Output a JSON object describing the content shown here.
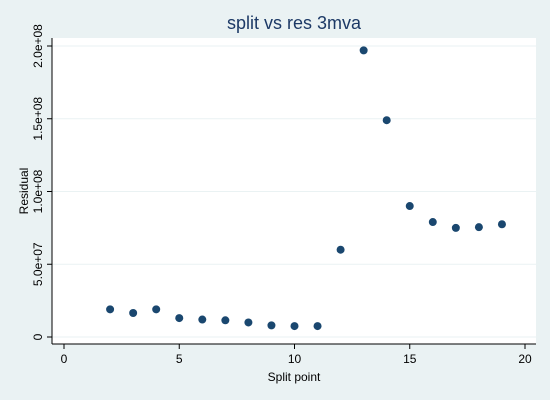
{
  "chart_data": {
    "type": "scatter",
    "title": "split vs res 3mva",
    "xlabel": "Split point",
    "ylabel": "Residual",
    "xlim": [
      0,
      20
    ],
    "ylim": [
      0,
      200000000
    ],
    "xticks": [
      0,
      5,
      10,
      15,
      20
    ],
    "xtick_labels": [
      "0",
      "5",
      "10",
      "15",
      "20"
    ],
    "yticks": [
      0,
      50000000,
      100000000,
      150000000,
      200000000
    ],
    "ytick_labels": [
      "0",
      "5.0e+07",
      "1.0e+08",
      "1.5e+08",
      "2.0e+08"
    ],
    "grid": true,
    "legend": "none",
    "series": [
      {
        "x": [
          2,
          3,
          4,
          5,
          6,
          7,
          8,
          9,
          10,
          11,
          12,
          13,
          14,
          15,
          16,
          17,
          18,
          19
        ],
        "y": [
          19000000,
          16500000,
          19000000,
          13000000,
          12000000,
          11500000,
          10000000,
          8000000,
          7500000,
          7500000,
          60000000,
          197000000,
          149000000,
          90000000,
          79000000,
          75000000,
          75500000,
          77500000
        ]
      }
    ],
    "colors": {
      "background": "#EAF2F3",
      "plot_area": "#FFFFFF",
      "marker": "#1A476F",
      "title": "#1C3966"
    }
  }
}
